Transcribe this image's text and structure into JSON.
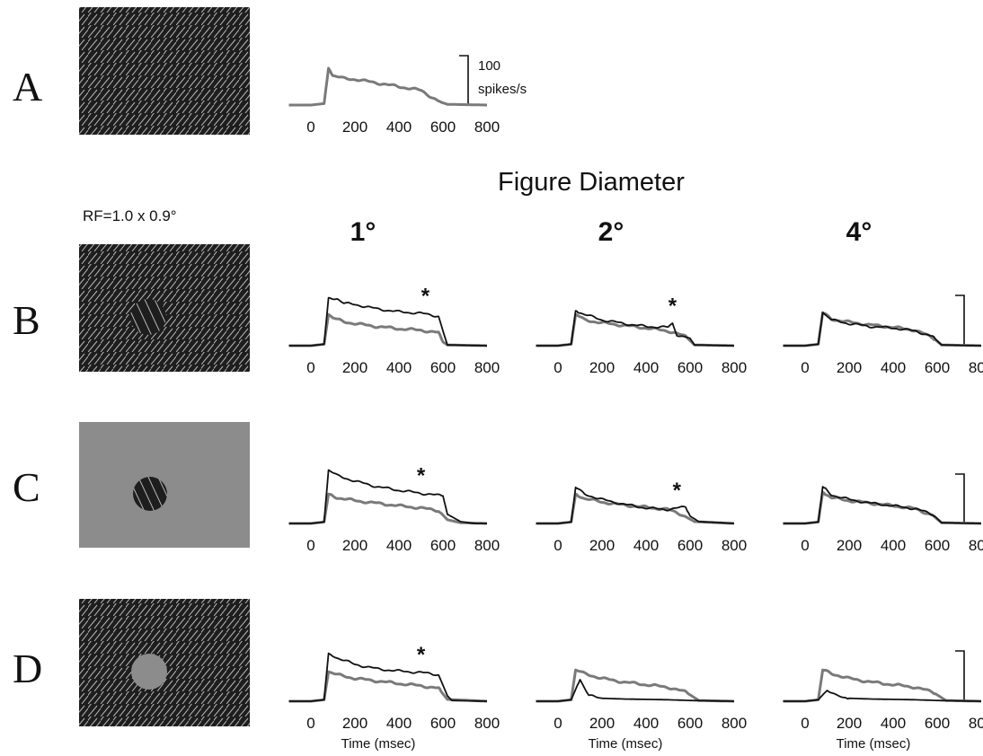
{
  "rows": [
    "A",
    "B",
    "C",
    "D"
  ],
  "section_title": "Figure Diameter",
  "rf_label": "RF=1.0 x  0.9°",
  "column_headers": [
    "1°",
    "2°",
    "4°"
  ],
  "scale_bar": {
    "value": "100",
    "unit": "spikes/s"
  },
  "x_axis_label": "Time (msec)",
  "colors": {
    "background_response": "#7a7a7a",
    "figure_response": "#111111"
  },
  "chart_data": [
    {
      "type": "line",
      "panel": "A",
      "x_ticks": [
        0,
        200,
        400,
        600,
        800
      ],
      "xlim": [
        -100,
        800
      ],
      "series": [
        {
          "key": "gray",
          "points": [
            [
              0,
              0
            ],
            [
              60,
              4
            ],
            [
              80,
              100
            ],
            [
              100,
              80
            ],
            [
              150,
              72
            ],
            [
              200,
              70
            ],
            [
              300,
              60
            ],
            [
              400,
              50
            ],
            [
              500,
              40
            ],
            [
              580,
              10
            ],
            [
              620,
              2
            ],
            [
              800,
              0
            ]
          ]
        }
      ]
    },
    {
      "type": "line",
      "panel": "B-1",
      "x_ticks": [
        0,
        200,
        400,
        600,
        800
      ],
      "xlim": [
        -100,
        800
      ],
      "series": [
        {
          "key": "black",
          "points": [
            [
              0,
              0
            ],
            [
              60,
              4
            ],
            [
              80,
              130
            ],
            [
              120,
              128
            ],
            [
              150,
              115
            ],
            [
              200,
              112
            ],
            [
              300,
              100
            ],
            [
              400,
              92
            ],
            [
              500,
              88
            ],
            [
              580,
              80
            ],
            [
              600,
              40
            ],
            [
              620,
              2
            ],
            [
              800,
              0
            ]
          ]
        },
        {
          "key": "gray",
          "points": [
            [
              0,
              0
            ],
            [
              60,
              4
            ],
            [
              80,
              85
            ],
            [
              100,
              75
            ],
            [
              150,
              65
            ],
            [
              200,
              60
            ],
            [
              300,
              52
            ],
            [
              400,
              46
            ],
            [
              500,
              42
            ],
            [
              580,
              35
            ],
            [
              600,
              10
            ],
            [
              620,
              2
            ],
            [
              800,
              0
            ]
          ]
        }
      ],
      "annotations": [
        {
          "text": "*",
          "x": 520
        }
      ]
    },
    {
      "type": "line",
      "panel": "B-2",
      "x_ticks": [
        0,
        200,
        400,
        600,
        800
      ],
      "xlim": [
        -100,
        800
      ],
      "series": [
        {
          "key": "black",
          "points": [
            [
              0,
              0
            ],
            [
              60,
              4
            ],
            [
              80,
              95
            ],
            [
              120,
              85
            ],
            [
              200,
              70
            ],
            [
              300,
              60
            ],
            [
              400,
              52
            ],
            [
              500,
              50
            ],
            [
              520,
              60
            ],
            [
              540,
              30
            ],
            [
              600,
              20
            ],
            [
              620,
              2
            ],
            [
              800,
              0
            ]
          ]
        },
        {
          "key": "gray",
          "points": [
            [
              0,
              0
            ],
            [
              60,
              4
            ],
            [
              80,
              85
            ],
            [
              120,
              70
            ],
            [
              200,
              62
            ],
            [
              300,
              55
            ],
            [
              400,
              48
            ],
            [
              500,
              40
            ],
            [
              580,
              25
            ],
            [
              620,
              2
            ],
            [
              800,
              0
            ]
          ]
        }
      ],
      "annotations": [
        {
          "text": "*",
          "x": 520
        }
      ]
    },
    {
      "type": "line",
      "panel": "B-3",
      "x_ticks": [
        0,
        200,
        400,
        600,
        800
      ],
      "xlim": [
        -100,
        800
      ],
      "series": [
        {
          "key": "black",
          "points": [
            [
              0,
              0
            ],
            [
              60,
              4
            ],
            [
              80,
              90
            ],
            [
              120,
              70
            ],
            [
              200,
              60
            ],
            [
              300,
              52
            ],
            [
              400,
              48
            ],
            [
              500,
              40
            ],
            [
              580,
              25
            ],
            [
              620,
              2
            ],
            [
              800,
              0
            ]
          ]
        },
        {
          "key": "gray",
          "points": [
            [
              0,
              0
            ],
            [
              60,
              4
            ],
            [
              80,
              90
            ],
            [
              120,
              72
            ],
            [
              200,
              64
            ],
            [
              300,
              56
            ],
            [
              400,
              50
            ],
            [
              500,
              42
            ],
            [
              580,
              22
            ],
            [
              620,
              2
            ],
            [
              800,
              0
            ]
          ]
        }
      ]
    },
    {
      "type": "line",
      "panel": "C-1",
      "x_ticks": [
        0,
        200,
        400,
        600,
        800
      ],
      "xlim": [
        -100,
        800
      ],
      "series": [
        {
          "key": "black",
          "points": [
            [
              0,
              0
            ],
            [
              60,
              4
            ],
            [
              80,
              145
            ],
            [
              120,
              130
            ],
            [
              200,
              115
            ],
            [
              300,
              100
            ],
            [
              400,
              90
            ],
            [
              500,
              82
            ],
            [
              600,
              75
            ],
            [
              620,
              25
            ],
            [
              680,
              5
            ],
            [
              740,
              0
            ],
            [
              800,
              0
            ]
          ]
        },
        {
          "key": "gray",
          "points": [
            [
              0,
              0
            ],
            [
              60,
              4
            ],
            [
              80,
              80
            ],
            [
              120,
              70
            ],
            [
              200,
              62
            ],
            [
              300,
              55
            ],
            [
              400,
              48
            ],
            [
              500,
              42
            ],
            [
              580,
              35
            ],
            [
              620,
              10
            ],
            [
              680,
              2
            ],
            [
              800,
              0
            ]
          ]
        }
      ],
      "annotations": [
        {
          "text": "*",
          "x": 500
        }
      ]
    },
    {
      "type": "line",
      "panel": "C-2",
      "x_ticks": [
        0,
        200,
        400,
        600,
        800
      ],
      "xlim": [
        -100,
        800
      ],
      "series": [
        {
          "key": "black",
          "points": [
            [
              0,
              0
            ],
            [
              60,
              4
            ],
            [
              80,
              98
            ],
            [
              120,
              80
            ],
            [
              200,
              65
            ],
            [
              300,
              52
            ],
            [
              400,
              42
            ],
            [
              500,
              38
            ],
            [
              580,
              45
            ],
            [
              600,
              20
            ],
            [
              640,
              5
            ],
            [
              800,
              0
            ]
          ]
        },
        {
          "key": "gray",
          "points": [
            [
              0,
              0
            ],
            [
              60,
              4
            ],
            [
              80,
              80
            ],
            [
              120,
              68
            ],
            [
              200,
              58
            ],
            [
              300,
              50
            ],
            [
              400,
              44
            ],
            [
              500,
              38
            ],
            [
              560,
              25
            ],
            [
              620,
              5
            ],
            [
              800,
              0
            ]
          ]
        }
      ],
      "annotations": [
        {
          "text": "*",
          "x": 540
        }
      ]
    },
    {
      "type": "line",
      "panel": "C-3",
      "x_ticks": [
        0,
        200,
        400,
        600,
        800
      ],
      "xlim": [
        -100,
        800
      ],
      "series": [
        {
          "key": "black",
          "points": [
            [
              0,
              0
            ],
            [
              60,
              4
            ],
            [
              80,
              100
            ],
            [
              120,
              78
            ],
            [
              200,
              65
            ],
            [
              300,
              55
            ],
            [
              400,
              48
            ],
            [
              500,
              40
            ],
            [
              580,
              25
            ],
            [
              620,
              2
            ],
            [
              800,
              0
            ]
          ]
        },
        {
          "key": "gray",
          "points": [
            [
              0,
              0
            ],
            [
              60,
              4
            ],
            [
              80,
              85
            ],
            [
              120,
              70
            ],
            [
              200,
              62
            ],
            [
              300,
              55
            ],
            [
              400,
              48
            ],
            [
              500,
              40
            ],
            [
              580,
              22
            ],
            [
              620,
              2
            ],
            [
              800,
              0
            ]
          ]
        }
      ]
    },
    {
      "type": "line",
      "panel": "D-1",
      "x_ticks": [
        0,
        200,
        400,
        600,
        800
      ],
      "xlim": [
        -100,
        800
      ],
      "series": [
        {
          "key": "black",
          "points": [
            [
              0,
              0
            ],
            [
              60,
              4
            ],
            [
              80,
              130
            ],
            [
              120,
              118
            ],
            [
              200,
              100
            ],
            [
              300,
              88
            ],
            [
              400,
              82
            ],
            [
              500,
              78
            ],
            [
              580,
              72
            ],
            [
              620,
              15
            ],
            [
              640,
              2
            ],
            [
              800,
              0
            ]
          ]
        },
        {
          "key": "gray",
          "points": [
            [
              0,
              0
            ],
            [
              60,
              4
            ],
            [
              80,
              80
            ],
            [
              120,
              72
            ],
            [
              200,
              62
            ],
            [
              300,
              55
            ],
            [
              400,
              48
            ],
            [
              500,
              42
            ],
            [
              580,
              35
            ],
            [
              620,
              5
            ],
            [
              800,
              0
            ]
          ]
        }
      ],
      "annotations": [
        {
          "text": "*",
          "x": 500
        }
      ]
    },
    {
      "type": "line",
      "panel": "D-2",
      "x_ticks": [
        0,
        200,
        400,
        600,
        800
      ],
      "xlim": [
        -100,
        800
      ],
      "series": [
        {
          "key": "black",
          "points": [
            [
              0,
              0
            ],
            [
              60,
              4
            ],
            [
              100,
              60
            ],
            [
              140,
              15
            ],
            [
              200,
              8
            ],
            [
              300,
              6
            ],
            [
              400,
              5
            ],
            [
              500,
              4
            ],
            [
              600,
              2
            ],
            [
              800,
              0
            ]
          ]
        },
        {
          "key": "gray",
          "points": [
            [
              0,
              0
            ],
            [
              60,
              4
            ],
            [
              80,
              85
            ],
            [
              120,
              75
            ],
            [
              200,
              62
            ],
            [
              300,
              52
            ],
            [
              400,
              45
            ],
            [
              500,
              38
            ],
            [
              580,
              25
            ],
            [
              640,
              2
            ],
            [
              800,
              0
            ]
          ]
        }
      ]
    },
    {
      "type": "line",
      "panel": "D-3",
      "x_ticks": [
        0,
        200,
        400,
        600,
        800
      ],
      "xlim": [
        -100,
        800
      ],
      "series": [
        {
          "key": "black",
          "points": [
            [
              0,
              0
            ],
            [
              60,
              4
            ],
            [
              100,
              30
            ],
            [
              140,
              15
            ],
            [
              200,
              8
            ],
            [
              300,
              6
            ],
            [
              400,
              5
            ],
            [
              500,
              4
            ],
            [
              600,
              2
            ],
            [
              800,
              0
            ]
          ]
        },
        {
          "key": "gray",
          "points": [
            [
              0,
              0
            ],
            [
              60,
              4
            ],
            [
              80,
              85
            ],
            [
              120,
              75
            ],
            [
              200,
              62
            ],
            [
              300,
              52
            ],
            [
              400,
              45
            ],
            [
              500,
              38
            ],
            [
              580,
              25
            ],
            [
              640,
              2
            ],
            [
              800,
              0
            ]
          ]
        }
      ]
    }
  ]
}
